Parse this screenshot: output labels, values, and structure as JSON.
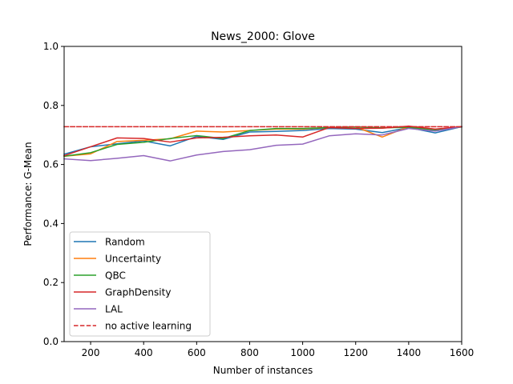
{
  "chart_data": {
    "type": "line",
    "title": "News_2000: Glove",
    "xlabel": "Number of instances",
    "ylabel": "Performance: G-Mean",
    "xlim": [
      100,
      1600
    ],
    "ylim": [
      0.0,
      1.0
    ],
    "xticks": [
      "200",
      "400",
      "600",
      "800",
      "1000",
      "1200",
      "1400",
      "1600"
    ],
    "yticks": [
      "0.0",
      "0.2",
      "0.4",
      "0.6",
      "0.8",
      "1.0"
    ],
    "grid": false,
    "legend_position": "lower-left",
    "x": [
      100,
      200,
      300,
      400,
      500,
      600,
      700,
      800,
      900,
      1000,
      1100,
      1200,
      1300,
      1400,
      1500,
      1600
    ],
    "series": [
      {
        "name": "Random",
        "color": "#1f77b4",
        "style": "solid",
        "values": [
          0.635,
          0.66,
          0.67,
          0.68,
          0.663,
          0.695,
          0.685,
          0.71,
          0.712,
          0.715,
          0.722,
          0.72,
          0.708,
          0.725,
          0.707,
          0.728
        ]
      },
      {
        "name": "Uncertainty",
        "color": "#ff7f0e",
        "style": "solid",
        "values": [
          0.628,
          0.636,
          0.678,
          0.682,
          0.687,
          0.713,
          0.71,
          0.715,
          0.72,
          0.72,
          0.725,
          0.727,
          0.693,
          0.728,
          0.715,
          0.728
        ]
      },
      {
        "name": "QBC",
        "color": "#2ca02c",
        "style": "solid",
        "values": [
          0.628,
          0.64,
          0.668,
          0.675,
          0.688,
          0.698,
          0.688,
          0.715,
          0.722,
          0.722,
          0.725,
          0.727,
          0.724,
          0.726,
          0.716,
          0.727
        ]
      },
      {
        "name": "GraphDensity",
        "color": "#d62728",
        "style": "solid",
        "values": [
          0.63,
          0.66,
          0.69,
          0.688,
          0.676,
          0.69,
          0.692,
          0.697,
          0.7,
          0.693,
          0.725,
          0.722,
          0.723,
          0.73,
          0.72,
          0.728
        ]
      },
      {
        "name": "LAL",
        "color": "#9467bd",
        "style": "solid",
        "values": [
          0.619,
          0.613,
          0.621,
          0.63,
          0.612,
          0.632,
          0.644,
          0.65,
          0.665,
          0.669,
          0.697,
          0.704,
          0.7,
          0.722,
          0.713,
          0.728
        ]
      },
      {
        "name": "no active learning",
        "color": "#d62728",
        "style": "dashed",
        "values": [
          0.728,
          0.728,
          0.728,
          0.728,
          0.728,
          0.728,
          0.728,
          0.728,
          0.728,
          0.728,
          0.728,
          0.728,
          0.728,
          0.728,
          0.728,
          0.728
        ]
      }
    ]
  }
}
